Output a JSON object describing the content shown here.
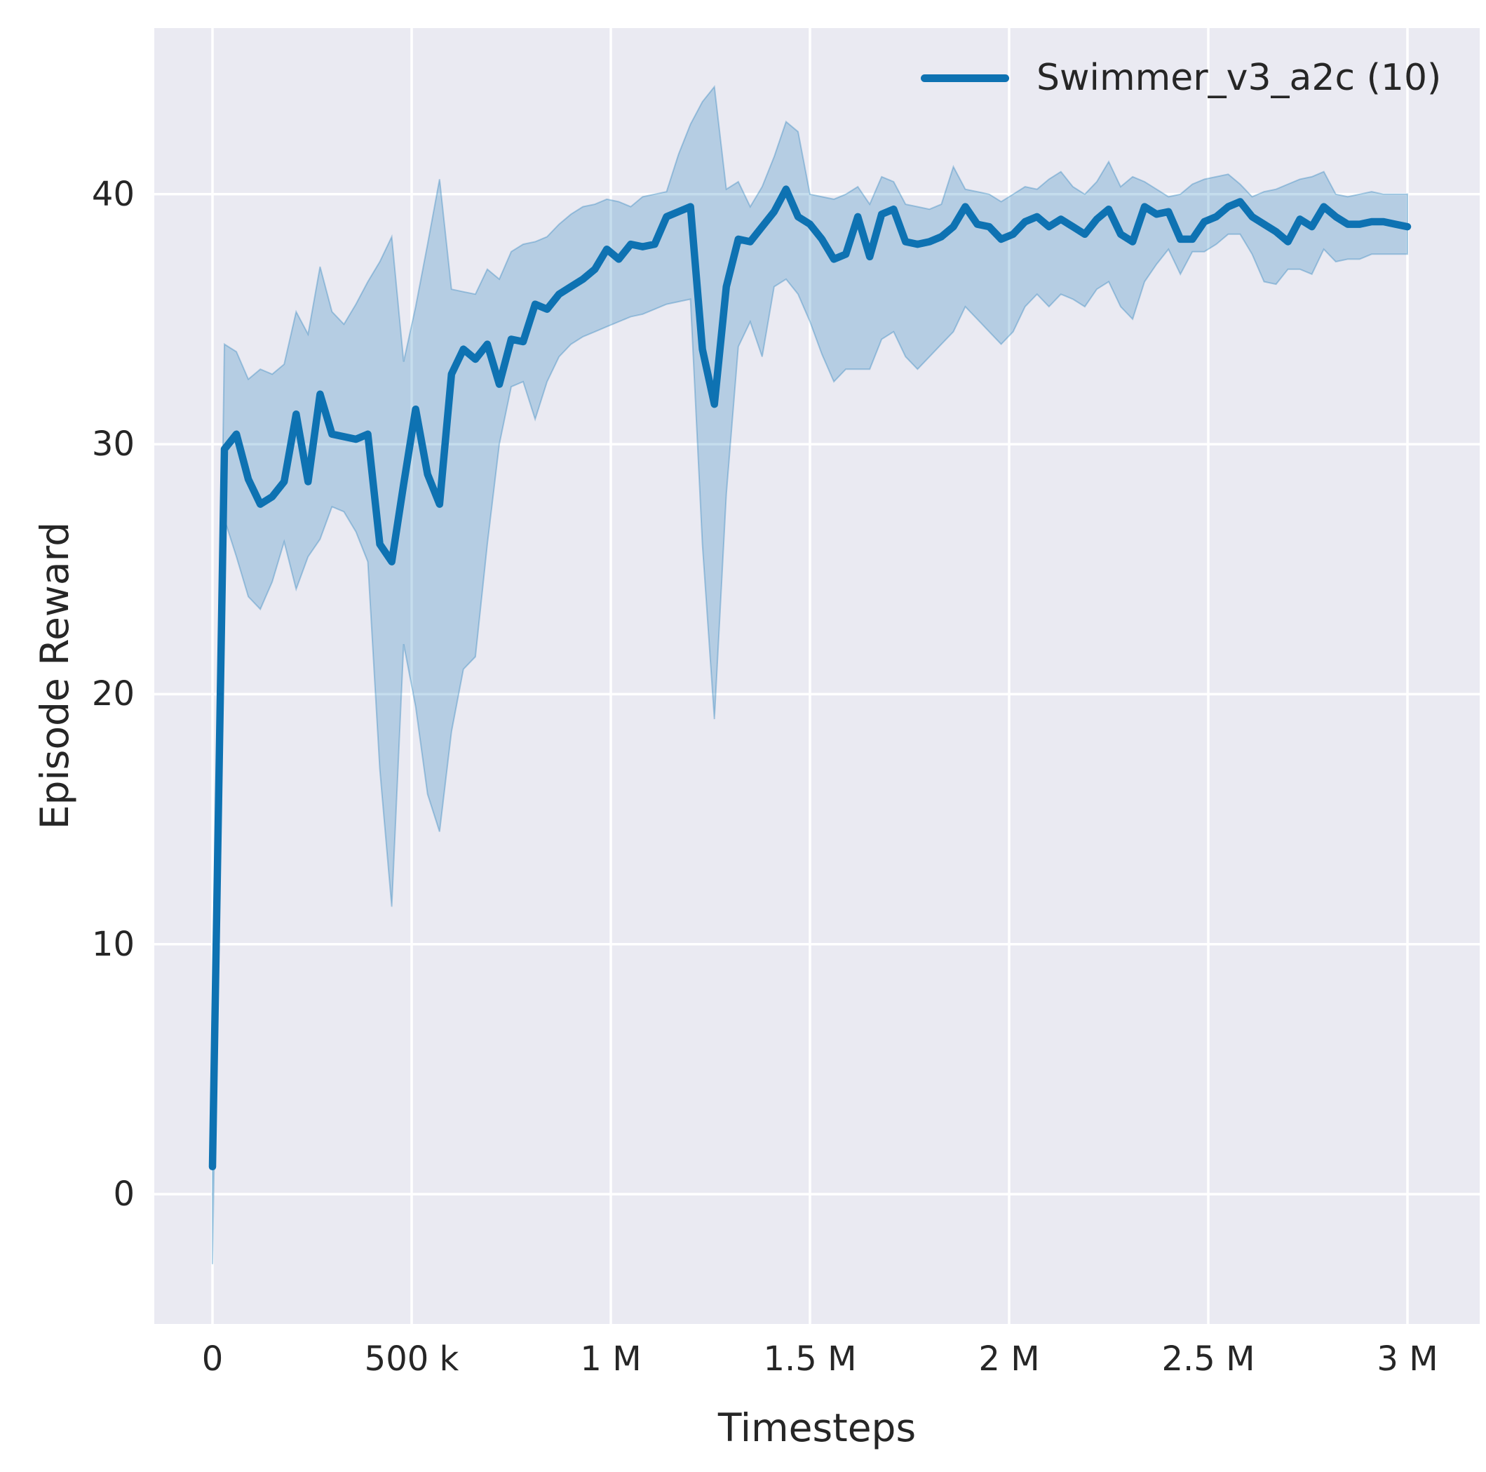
{
  "chart_data": {
    "type": "line",
    "title": "",
    "xlabel": "Timesteps",
    "ylabel": "Episode Reward",
    "grid": true,
    "legend_position": "upper right",
    "legend": [
      {
        "label": "Swimmer_v3_a2c (10)",
        "color": "#0e72b2"
      }
    ],
    "colors": {
      "line": "#0e72b2",
      "band_fill": "rgba(14,114,178,0.24)",
      "band_edge": "rgba(14,114,178,0.30)",
      "plot_background": "#eaeaf2",
      "gridline": "#ffffff",
      "text": "#262626"
    },
    "xlim": [
      -146000,
      3180000
    ],
    "ylim": [
      -5.2,
      46.6
    ],
    "x_ticks": [
      {
        "value": 0,
        "label": "0"
      },
      {
        "value": 500000,
        "label": "500 k"
      },
      {
        "value": 1000000,
        "label": "1 M"
      },
      {
        "value": 1500000,
        "label": "1.5 M"
      },
      {
        "value": 2000000,
        "label": "2 M"
      },
      {
        "value": 2500000,
        "label": "2.5 M"
      },
      {
        "value": 3000000,
        "label": "3 M"
      }
    ],
    "y_ticks": [
      {
        "value": 0,
        "label": "0"
      },
      {
        "value": 10,
        "label": "10"
      },
      {
        "value": 20,
        "label": "20"
      },
      {
        "value": 30,
        "label": "30"
      },
      {
        "value": 40,
        "label": "40"
      }
    ],
    "series": [
      {
        "name": "Swimmer_v3_a2c (10)",
        "x": [
          0,
          30000,
          60000,
          90000,
          120000,
          150000,
          180000,
          210000,
          240000,
          270000,
          300000,
          330000,
          360000,
          390000,
          420000,
          450000,
          480000,
          510000,
          540000,
          570000,
          600000,
          630000,
          660000,
          690000,
          720000,
          750000,
          780000,
          810000,
          840000,
          870000,
          900000,
          930000,
          960000,
          990000,
          1020000,
          1050000,
          1080000,
          1110000,
          1140000,
          1170000,
          1200000,
          1230000,
          1260000,
          1290000,
          1320000,
          1350000,
          1380000,
          1410000,
          1440000,
          1470000,
          1500000,
          1530000,
          1560000,
          1590000,
          1620000,
          1650000,
          1680000,
          1710000,
          1740000,
          1770000,
          1800000,
          1830000,
          1860000,
          1890000,
          1920000,
          1950000,
          1980000,
          2010000,
          2040000,
          2070000,
          2100000,
          2130000,
          2160000,
          2190000,
          2220000,
          2250000,
          2280000,
          2310000,
          2340000,
          2370000,
          2400000,
          2430000,
          2460000,
          2490000,
          2520000,
          2550000,
          2580000,
          2610000,
          2640000,
          2670000,
          2700000,
          2730000,
          2760000,
          2790000,
          2820000,
          2850000,
          2880000,
          2910000,
          2940000,
          2970000,
          3000000
        ],
        "mean": [
          1.1,
          29.8,
          30.4,
          28.6,
          27.6,
          27.9,
          28.5,
          31.2,
          28.5,
          32.0,
          30.4,
          30.3,
          30.2,
          30.4,
          26.0,
          25.3,
          28.4,
          31.4,
          28.8,
          27.6,
          32.8,
          33.8,
          33.4,
          34.0,
          32.4,
          34.2,
          34.1,
          35.6,
          35.4,
          36.0,
          36.3,
          36.6,
          37.0,
          37.8,
          37.4,
          38.0,
          37.9,
          38.0,
          39.1,
          39.3,
          39.5,
          33.8,
          31.6,
          36.3,
          38.2,
          38.1,
          38.7,
          39.3,
          40.2,
          39.1,
          38.8,
          38.2,
          37.4,
          37.6,
          39.1,
          37.5,
          39.2,
          39.4,
          38.1,
          38.0,
          38.1,
          38.3,
          38.7,
          39.5,
          38.8,
          38.7,
          38.2,
          38.4,
          38.9,
          39.1,
          38.7,
          39.0,
          38.7,
          38.4,
          39.0,
          39.4,
          38.4,
          38.1,
          39.5,
          39.2,
          39.3,
          38.2,
          38.2,
          38.9,
          39.1,
          39.5,
          39.7,
          39.1,
          38.8,
          38.5,
          38.1,
          39.0,
          38.7,
          39.5,
          39.1,
          38.8,
          38.8,
          38.9,
          38.9,
          38.8,
          38.7
        ],
        "lower": [
          -2.8,
          27.0,
          25.5,
          23.9,
          23.4,
          24.5,
          26.1,
          24.2,
          25.5,
          26.2,
          27.5,
          27.3,
          26.5,
          25.3,
          17.0,
          11.5,
          22.0,
          19.5,
          16.0,
          14.5,
          18.5,
          21.0,
          21.5,
          26.0,
          30.0,
          32.3,
          32.5,
          31.0,
          32.5,
          33.5,
          34.0,
          34.3,
          34.5,
          34.7,
          34.9,
          35.1,
          35.2,
          35.4,
          35.6,
          35.7,
          35.8,
          26.0,
          19.0,
          28.0,
          33.9,
          34.9,
          33.5,
          36.3,
          36.6,
          36.0,
          34.9,
          33.6,
          32.5,
          33.0,
          33.0,
          33.0,
          34.2,
          34.5,
          33.5,
          33.0,
          33.5,
          34.0,
          34.5,
          35.5,
          35.0,
          34.5,
          34.0,
          34.5,
          35.5,
          36.0,
          35.5,
          36.0,
          35.8,
          35.5,
          36.2,
          36.5,
          35.5,
          35.0,
          36.5,
          37.2,
          37.8,
          36.8,
          37.7,
          37.7,
          38.0,
          38.4,
          38.4,
          37.6,
          36.5,
          36.4,
          37.0,
          37.0,
          36.8,
          37.8,
          37.3,
          37.4,
          37.4,
          37.6,
          37.6,
          37.6,
          37.6
        ],
        "upper": [
          1.6,
          34.0,
          33.7,
          32.6,
          33.0,
          32.8,
          33.2,
          35.3,
          34.4,
          37.1,
          35.3,
          34.8,
          35.6,
          36.5,
          37.3,
          38.3,
          33.3,
          35.5,
          38.0,
          40.6,
          36.2,
          36.1,
          36.0,
          37.0,
          36.6,
          37.7,
          38.0,
          38.1,
          38.3,
          38.8,
          39.2,
          39.5,
          39.6,
          39.8,
          39.7,
          39.5,
          39.9,
          40.0,
          40.1,
          41.6,
          42.8,
          43.7,
          44.3,
          40.2,
          40.5,
          39.5,
          40.3,
          41.5,
          42.9,
          42.5,
          40.0,
          39.9,
          39.8,
          40.0,
          40.3,
          39.6,
          40.7,
          40.5,
          39.6,
          39.5,
          39.4,
          39.6,
          41.1,
          40.2,
          40.1,
          40.0,
          39.7,
          40.0,
          40.3,
          40.2,
          40.6,
          40.9,
          40.3,
          40.0,
          40.5,
          41.3,
          40.3,
          40.7,
          40.5,
          40.2,
          39.9,
          40.0,
          40.4,
          40.6,
          40.7,
          40.8,
          40.4,
          39.9,
          40.1,
          40.2,
          40.4,
          40.6,
          40.7,
          40.9,
          40.0,
          39.9,
          40.0,
          40.1,
          40.0,
          40.0,
          40.0
        ]
      }
    ]
  }
}
